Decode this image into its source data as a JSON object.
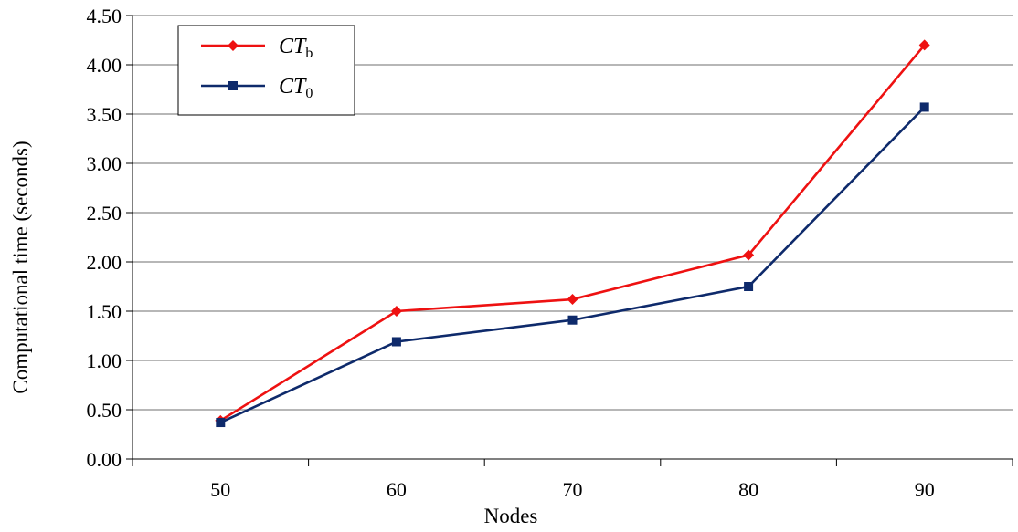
{
  "chart_data": {
    "type": "line",
    "title": "",
    "xlabel": "Nodes",
    "ylabel": "Computational time (seconds)",
    "categories": [
      "50",
      "60",
      "70",
      "80",
      "90"
    ],
    "ylim": [
      0,
      4.5
    ],
    "y_ticks": [
      "0.00",
      "0.50",
      "1.00",
      "1.50",
      "2.00",
      "2.50",
      "3.00",
      "3.50",
      "4.00",
      "4.50"
    ],
    "grid": true,
    "legend_position": "top-left",
    "series": [
      {
        "name": "CT",
        "subscript": "b",
        "color": "#ee1111",
        "marker": "diamond",
        "values": [
          0.39,
          1.5,
          1.62,
          2.07,
          4.2
        ]
      },
      {
        "name": "CT",
        "subscript": "0",
        "color": "#0e2a6b",
        "marker": "square",
        "values": [
          0.37,
          1.19,
          1.41,
          1.75,
          3.57
        ]
      }
    ]
  }
}
